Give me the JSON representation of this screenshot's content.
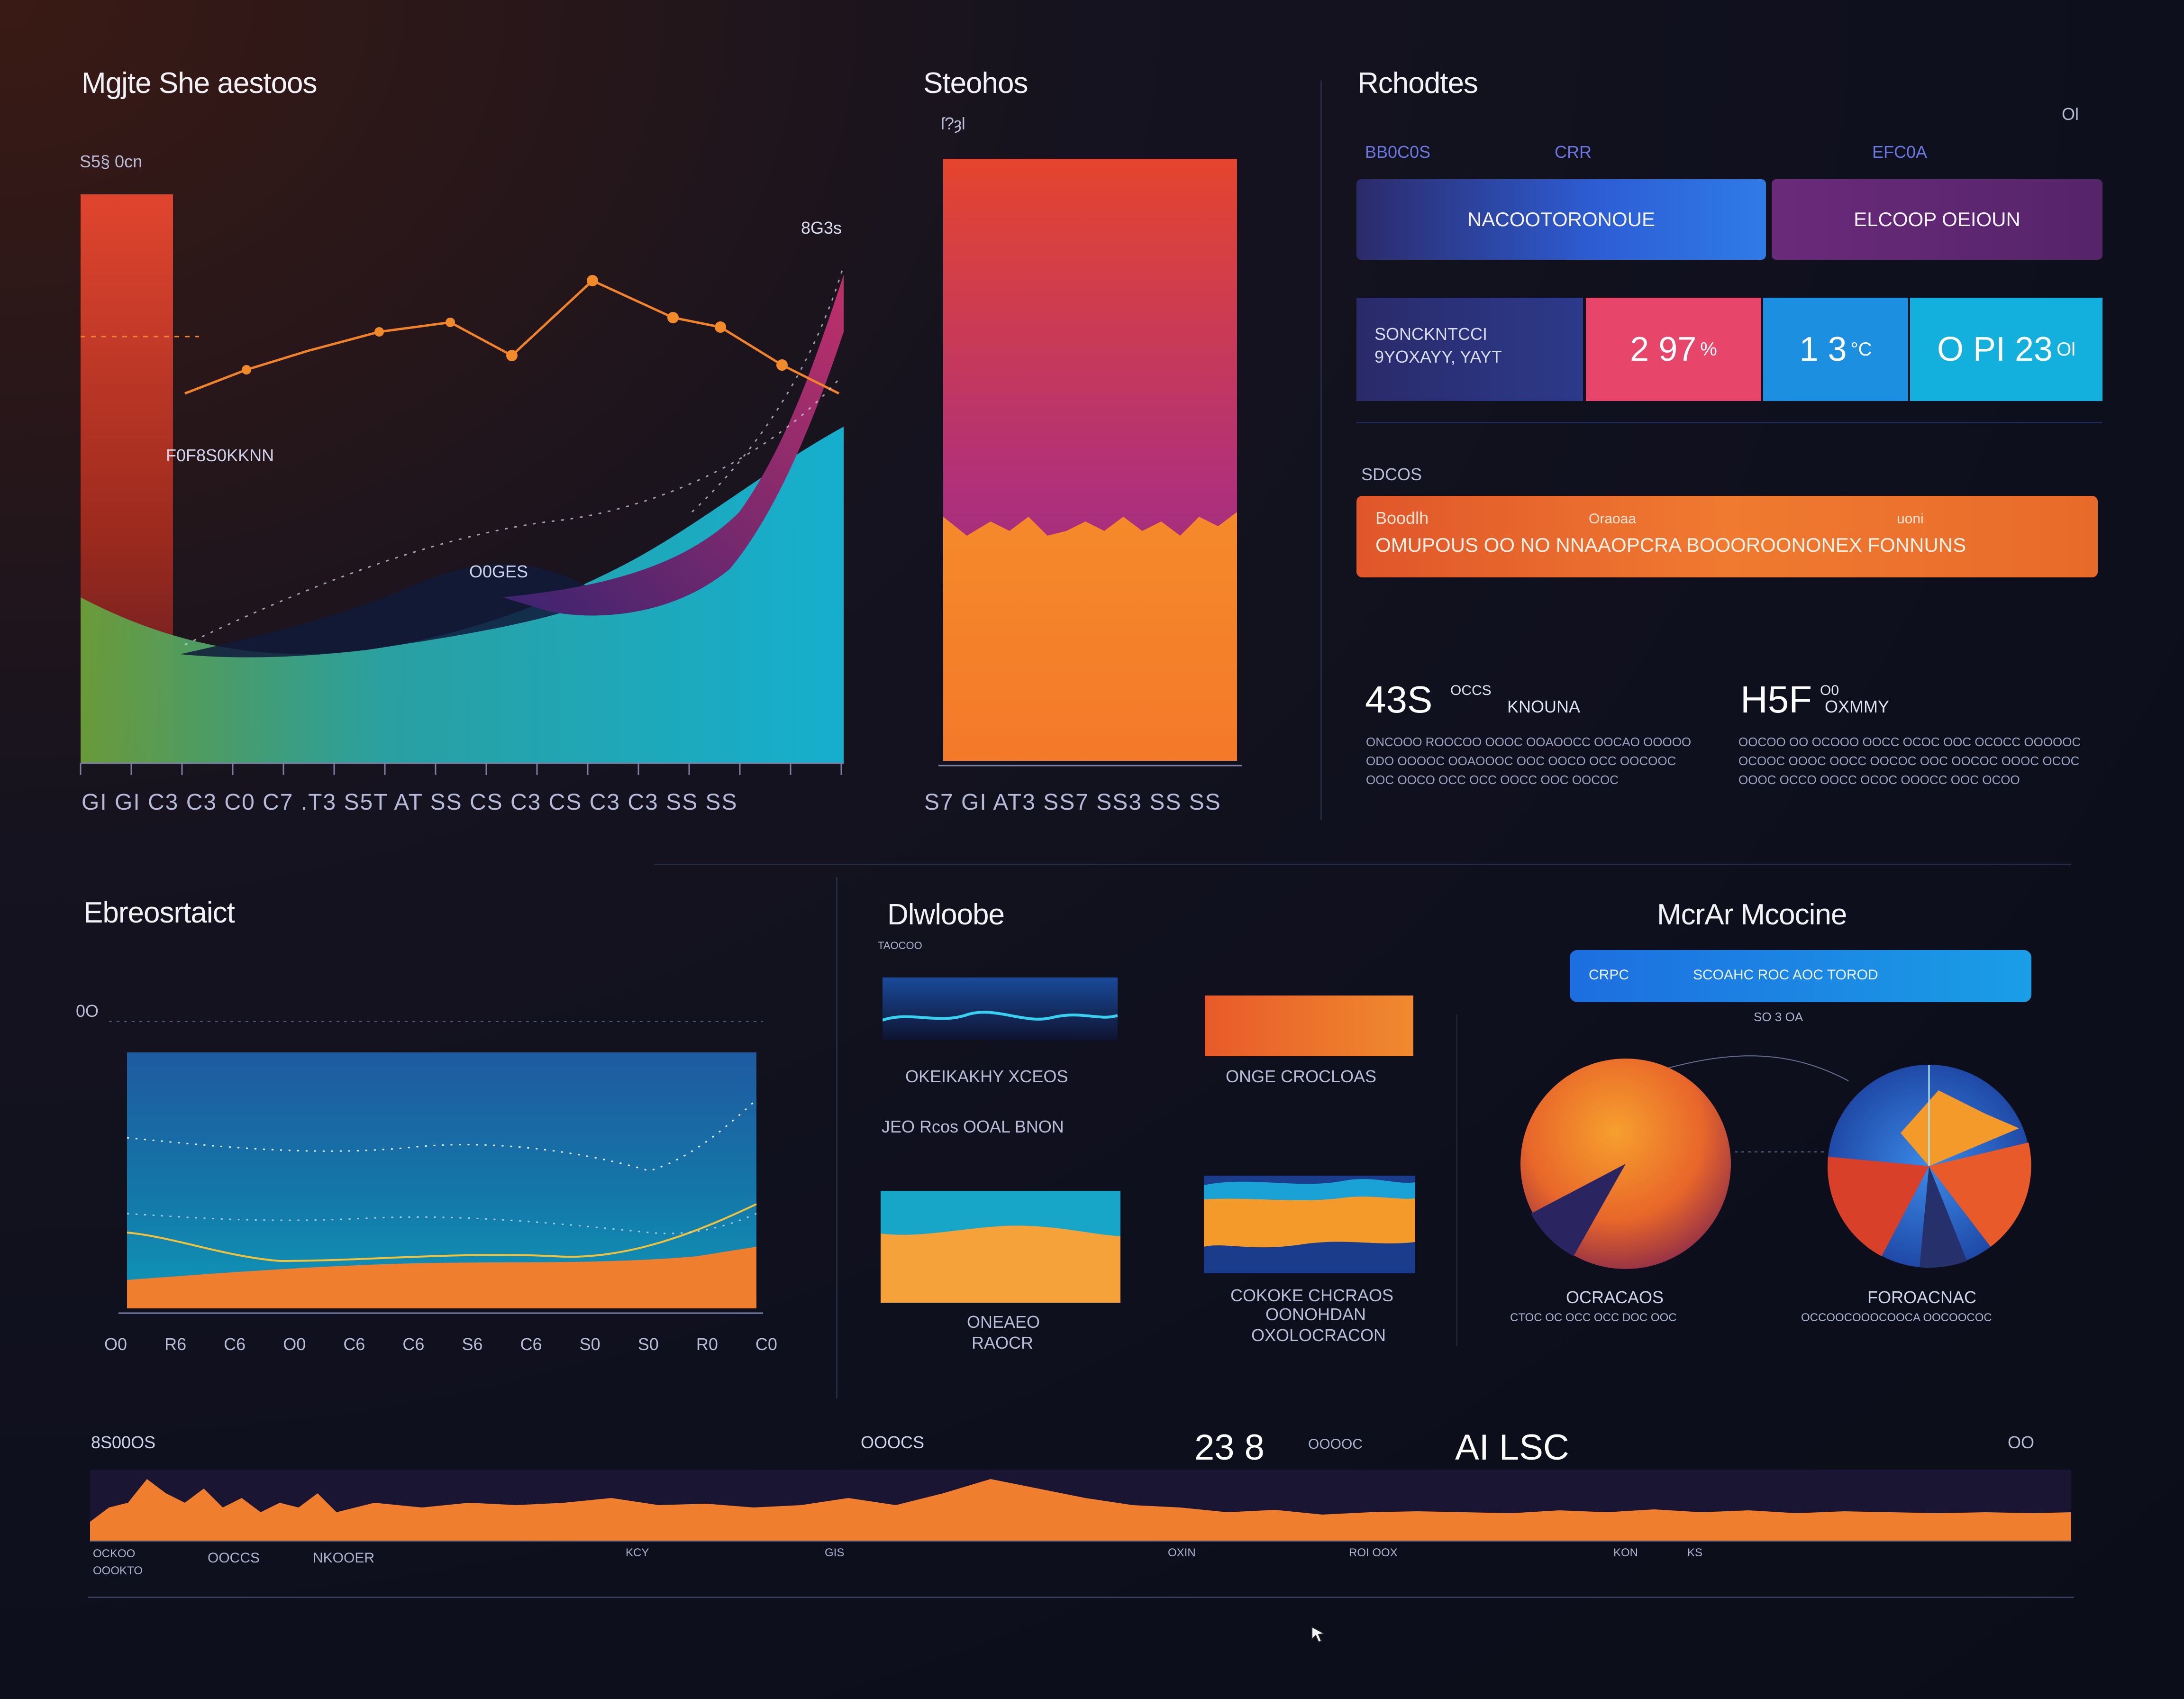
{
  "panels": {
    "top_left_title": "Mgjte She aestoos",
    "top_left_sub": "S5§ 0cn",
    "top_left_peak": "8G3s",
    "top_left_annot1": "F0F8S0KKNN",
    "top_left_annot2": "O0GES",
    "top_left_ticks": "GI GI C3 C3 C0 C7 .T3 S5T AT SS CS C3 CS C3 C3 SS SS",
    "top_mid_title": "Steohos",
    "top_mid_sub": "ſ?ȝl",
    "top_mid_ticks": "S7 GI AT3 SS7 SS3 SS SS",
    "top_right_title": "Rchodtes",
    "top_right_labels": [
      "BB0C0S",
      "CRR",
      "EFC0A"
    ],
    "top_right_corner": "Ol",
    "bottom_left_title": "Ebreosrtaict",
    "bottom_left_y": "0O",
    "bottom_left_ticks": [
      "O0",
      "R6",
      "C6",
      "O0",
      "C6",
      "C6",
      "S6",
      "C6",
      "S0",
      "S0",
      "R0",
      "C0"
    ],
    "bottom_mid_title": "Dlwloobe",
    "bottom_mid_sub": "TAOCOO",
    "bottom_mid_thumb1": "OKEIKAKHY XCEOS",
    "bottom_mid_thumb2": "ONGE CROCLOAS",
    "bottom_mid_mid": "JEO Rcos OOAL BNON",
    "bottom_mid_thumb3": [
      "ONEAEO",
      "RAOCR"
    ],
    "bottom_mid_thumb4": [
      "COKOKE CHCRAOS",
      "OONOHDAN",
      "OXOLOCRACON"
    ],
    "bottom_right_title": "McrAr Mcocine",
    "bottom_right_pill_small": "CRPC",
    "bottom_right_pill": "SCOAHC ROC AOC TOROD",
    "bottom_right_pie_top": "SO 3 OA",
    "pie1_title": "OCRACAOS",
    "pie1_sub": "CTOC OC OCC OCC DOC OOC",
    "pie2_title": "FOROACNAC",
    "pie2_sub": "OCCOOCOOOCOOCA OOCOOCOC"
  },
  "actions": {
    "primary": "NACOOTORONOUE",
    "secondary": "ELCOOP OEIOUN"
  },
  "metrics": {
    "row_label_1": "SONCKNTCCI",
    "row_label_2": "9YOXAYY, YAYT",
    "m1": "2 97",
    "m1_unit": "%",
    "m2": "1 3",
    "m2_unit": "°C",
    "m3": "O PI 23",
    "m3_unit": "Ol"
  },
  "banner": {
    "section_label": "SDCOS",
    "tag1": "Boodlh",
    "tag2": "Oraoaa",
    "tag3": "uoni",
    "text": "OMUPOUS OO NO  NNAAOPCRA  BOOOROONONEX FONNUNS"
  },
  "stats": {
    "s1_value": "43S",
    "s1_label": "KNOUNA",
    "s1_mini": "OCCS",
    "s1_text": "ONCOOO ROOCOO OOOC OOAOOCC OOCAO OOOOO ODO OOOOC OOAOOOC OOC OOCO OCC OOCOOC OOC OOCO OCC OCC OOCC OOC OOCOC",
    "s2_value": "H5F",
    "s2_label": "OXMMY",
    "s2_mini": "O0",
    "s2_text": "OOCOO OO OCOOO OOCC OCOC OOC OCOCC OOOOOC OCOOC OOOC OOCC OOCOC OOC OOCOC OOOC OCOC OOOC OCCO OOCC OCOC OOOCC OOC OCOO"
  },
  "footer": {
    "left_label": "8S00OS",
    "mid_label": "OOOCS",
    "metric_a": "23 8",
    "metric_a_small": "OOOOC",
    "metric_b": "AI LSC",
    "corner": "OO",
    "ticks": [
      "OOCCS",
      "NKOOER",
      "KCY",
      "GIS",
      "OXIN",
      "ROI OOX",
      "KON",
      "KS"
    ],
    "sub_ticks": [
      "OCKOO",
      "OOOKTO"
    ]
  },
  "colors": {
    "orange": "#f39a2b",
    "red": "#e0452f",
    "magenta": "#b02a6e",
    "cyan": "#1bb2d9",
    "blue": "#2f6fe0",
    "pink": "#e8456a",
    "purple": "#6a2a7a"
  },
  "icons": {
    "cursor": "arrow-cursor-icon"
  }
}
